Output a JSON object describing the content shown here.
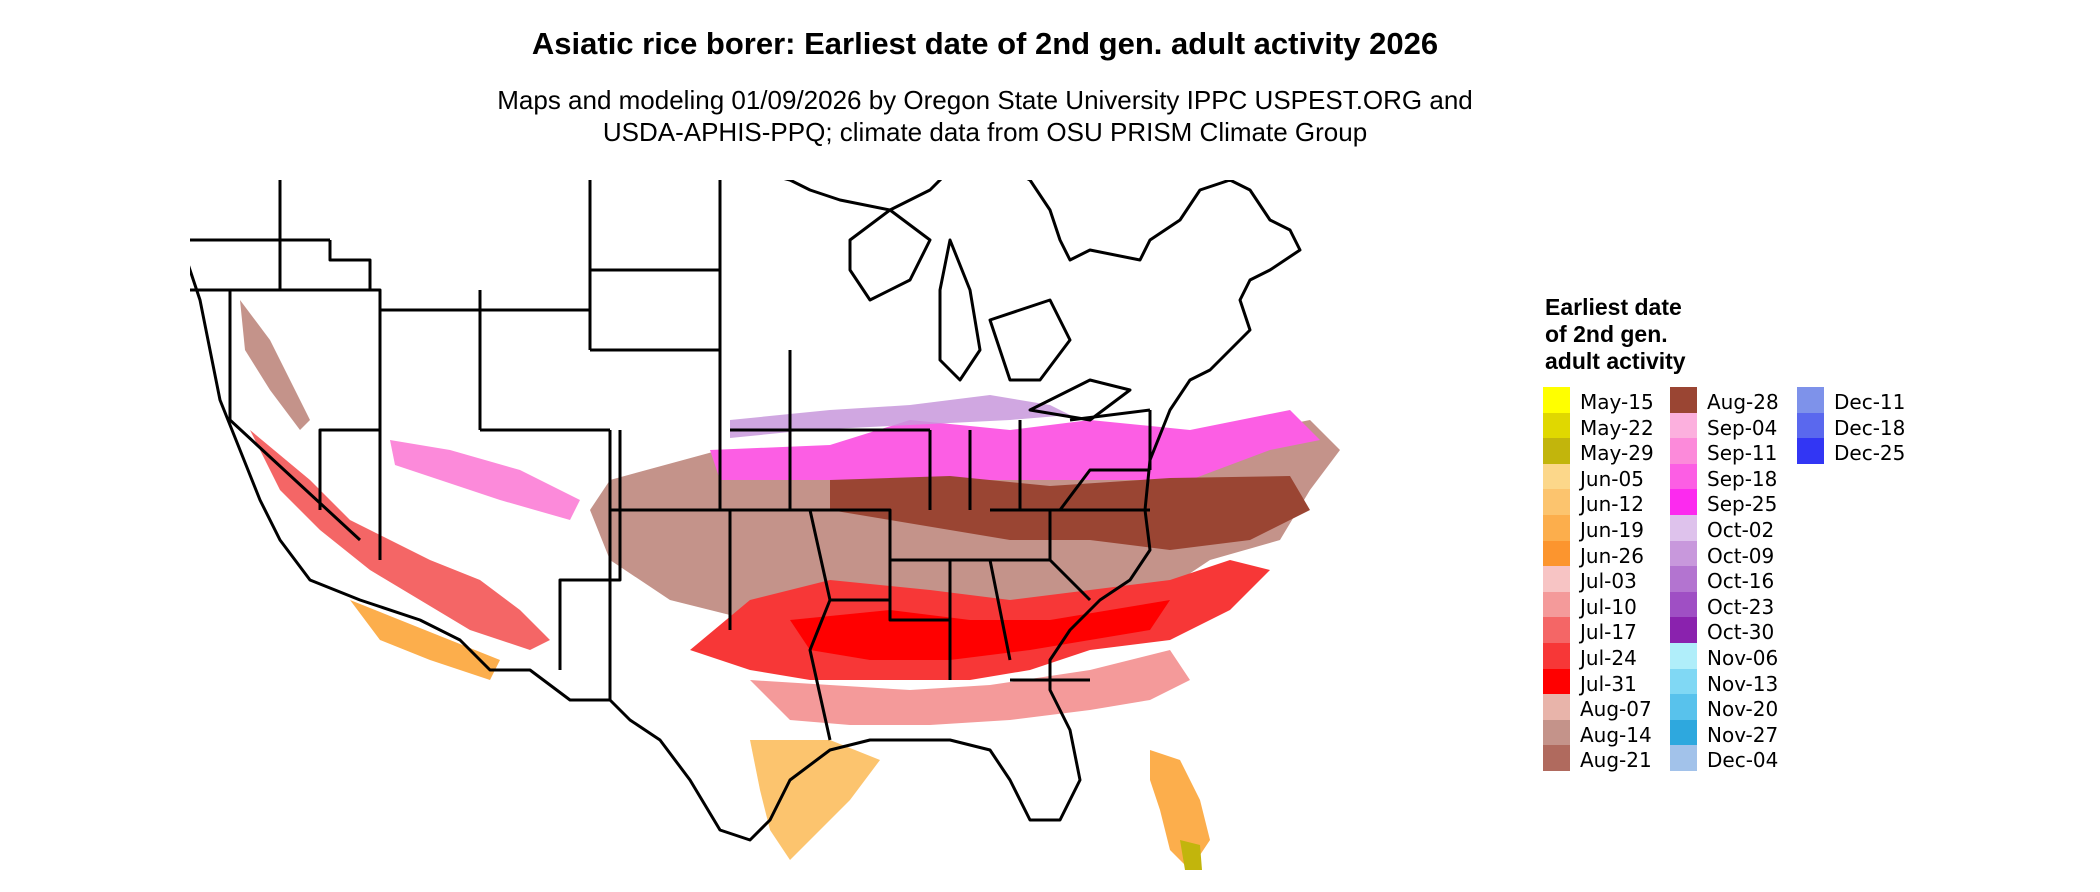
{
  "header": {
    "title": "Asiatic rice borer: Earliest date of 2nd gen. adult activity 2026",
    "subtitle_line1": "Maps and modeling 01/09/2026 by Oregon State University IPPC USPEST.ORG and",
    "subtitle_line2": "USDA-APHIS-PPQ; climate data from OSU PRISM Climate Group"
  },
  "legend": {
    "title_line1": "Earliest date",
    "title_line2": "of 2nd gen.",
    "title_line3": "adult activity",
    "items": [
      {
        "label": "May-15",
        "color": "#FFFF00"
      },
      {
        "label": "May-22",
        "color": "#E0D800"
      },
      {
        "label": "May-29",
        "color": "#C2B50C"
      },
      {
        "label": "Jun-05",
        "color": "#FCD78A"
      },
      {
        "label": "Jun-12",
        "color": "#FCC46E"
      },
      {
        "label": "Jun-19",
        "color": "#FCAE4C"
      },
      {
        "label": "Jun-26",
        "color": "#FC952E"
      },
      {
        "label": "Jul-03",
        "color": "#F7C4C4"
      },
      {
        "label": "Jul-10",
        "color": "#F49A9A"
      },
      {
        "label": "Jul-17",
        "color": "#F46666"
      },
      {
        "label": "Jul-24",
        "color": "#F73737"
      },
      {
        "label": "Jul-31",
        "color": "#FF0000"
      },
      {
        "label": "Aug-07",
        "color": "#E8B4AA"
      },
      {
        "label": "Aug-14",
        "color": "#C4938A"
      },
      {
        "label": "Aug-21",
        "color": "#B06A5E"
      },
      {
        "label": "Aug-28",
        "color": "#9A4533"
      },
      {
        "label": "Sep-04",
        "color": "#FCB0DE"
      },
      {
        "label": "Sep-11",
        "color": "#FC8ADA"
      },
      {
        "label": "Sep-18",
        "color": "#FC5EE4"
      },
      {
        "label": "Sep-25",
        "color": "#FC2AEF"
      },
      {
        "label": "Oct-02",
        "color": "#DEC2EC"
      },
      {
        "label": "Oct-09",
        "color": "#C898DC"
      },
      {
        "label": "Oct-16",
        "color": "#B374D0"
      },
      {
        "label": "Oct-23",
        "color": "#9F4FC4"
      },
      {
        "label": "Oct-30",
        "color": "#8A22AE"
      },
      {
        "label": "Nov-06",
        "color": "#B0EEFA"
      },
      {
        "label": "Nov-13",
        "color": "#80D8F4"
      },
      {
        "label": "Nov-20",
        "color": "#58C2EC"
      },
      {
        "label": "Nov-27",
        "color": "#2EA8DE"
      },
      {
        "label": "Dec-04",
        "color": "#A2C2EA"
      },
      {
        "label": "Dec-11",
        "color": "#7E92EA"
      },
      {
        "label": "Dec-18",
        "color": "#5A68EE"
      },
      {
        "label": "Dec-25",
        "color": "#3236F4"
      }
    ]
  }
}
